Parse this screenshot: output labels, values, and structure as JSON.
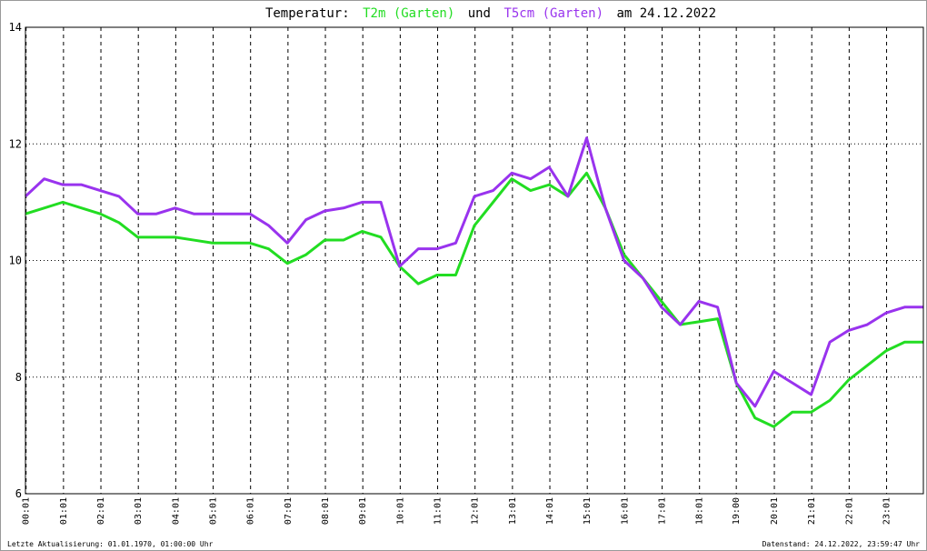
{
  "chart_data": {
    "type": "line",
    "title_parts": [
      "Temperatur:",
      "und",
      "am 24.12.2022"
    ],
    "footer_left": "Letzte Aktualisierung: 01.01.1970, 01:00:00 Uhr",
    "footer_right": "Datenstand: 24.12.2022, 23:59:47 Uhr",
    "x": [
      0,
      0.5,
      1,
      1.5,
      2,
      2.5,
      3,
      3.5,
      4,
      4.5,
      5,
      5.5,
      6,
      6.5,
      7,
      7.5,
      8,
      8.5,
      9,
      9.5,
      10,
      10.5,
      11,
      11.5,
      12,
      12.5,
      13,
      13.5,
      14,
      14.5,
      15,
      15.5,
      16,
      16.5,
      17,
      17.5,
      18,
      18.5,
      19,
      19.5,
      20,
      20.5,
      21,
      21.5,
      22,
      22.5,
      23,
      23.5,
      24
    ],
    "series": [
      {
        "name": "T2m (Garten)",
        "color": "#22dd22",
        "values": [
          10.8,
          10.9,
          11.0,
          10.9,
          10.8,
          10.65,
          10.4,
          10.4,
          10.4,
          10.35,
          10.3,
          10.3,
          10.3,
          10.2,
          9.95,
          10.1,
          10.35,
          10.35,
          10.5,
          10.4,
          9.9,
          9.6,
          9.75,
          9.75,
          10.6,
          11.0,
          11.4,
          11.2,
          11.3,
          11.1,
          11.5,
          10.9,
          10.1,
          9.7,
          9.3,
          8.9,
          8.95,
          9.0,
          7.9,
          7.3,
          7.15,
          7.4,
          7.4,
          7.6,
          7.95,
          8.2,
          8.45,
          8.6,
          8.6
        ]
      },
      {
        "name": "T5cm (Garten)",
        "color": "#9933ee",
        "values": [
          11.1,
          11.4,
          11.3,
          11.3,
          11.2,
          11.1,
          10.8,
          10.8,
          10.9,
          10.8,
          10.8,
          10.8,
          10.8,
          10.6,
          10.3,
          10.7,
          10.85,
          10.9,
          11.0,
          11.0,
          9.9,
          10.2,
          10.2,
          10.3,
          11.1,
          11.2,
          11.5,
          11.4,
          11.6,
          11.1,
          12.1,
          10.9,
          10.0,
          9.7,
          9.2,
          8.9,
          9.3,
          9.2,
          7.9,
          7.5,
          8.1,
          7.9,
          7.7,
          8.6,
          8.8,
          8.9,
          9.1,
          9.2,
          9.2
        ]
      }
    ],
    "xlim": [
      0,
      24
    ],
    "xticks": [
      {
        "value": 0.017,
        "label": "00:01"
      },
      {
        "value": 1.017,
        "label": "01:01"
      },
      {
        "value": 2.017,
        "label": "02:01"
      },
      {
        "value": 3.017,
        "label": "03:01"
      },
      {
        "value": 4.017,
        "label": "04:01"
      },
      {
        "value": 5.017,
        "label": "05:01"
      },
      {
        "value": 6.017,
        "label": "06:01"
      },
      {
        "value": 7.017,
        "label": "07:01"
      },
      {
        "value": 8.017,
        "label": "08:01"
      },
      {
        "value": 9.017,
        "label": "09:01"
      },
      {
        "value": 10.017,
        "label": "10:01"
      },
      {
        "value": 11.017,
        "label": "11:01"
      },
      {
        "value": 12.017,
        "label": "12:01"
      },
      {
        "value": 13.017,
        "label": "13:01"
      },
      {
        "value": 14.017,
        "label": "14:01"
      },
      {
        "value": 15.017,
        "label": "15:01"
      },
      {
        "value": 16.017,
        "label": "16:01"
      },
      {
        "value": 17.017,
        "label": "17:01"
      },
      {
        "value": 18.017,
        "label": "18:01"
      },
      {
        "value": 19.0,
        "label": "19:00"
      },
      {
        "value": 20.017,
        "label": "20:01"
      },
      {
        "value": 21.017,
        "label": "21:01"
      },
      {
        "value": 22.017,
        "label": "22:01"
      },
      {
        "value": 23.017,
        "label": "23:01"
      }
    ],
    "ylim": [
      6,
      14
    ],
    "yticks": [
      6,
      8,
      10,
      12,
      14
    ],
    "grid": true
  }
}
